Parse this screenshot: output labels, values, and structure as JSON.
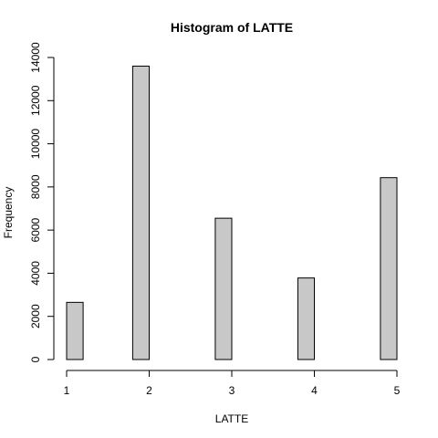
{
  "chart_data": {
    "type": "bar",
    "title": "Histogram of LATTE",
    "xlabel": "LATTE",
    "ylabel": "Frequency",
    "bin_edges": [
      1.0,
      1.2,
      1.4,
      1.6,
      1.8,
      2.0,
      2.2,
      2.4,
      2.6,
      2.8,
      3.0,
      3.2,
      3.4,
      3.6,
      3.8,
      4.0,
      4.2,
      4.4,
      4.6,
      4.8,
      5.0
    ],
    "values": [
      2650,
      0,
      0,
      0,
      13600,
      0,
      0,
      0,
      0,
      6550,
      0,
      0,
      0,
      0,
      3780,
      0,
      0,
      0,
      0,
      8430
    ],
    "bar_fill": "#c8c8c8",
    "bar_stroke": "#000000",
    "xlim": [
      1,
      5
    ],
    "ylim": [
      0,
      14000
    ],
    "x_ticks": [
      "1",
      "2",
      "3",
      "4",
      "5"
    ],
    "x_tick_values": [
      1,
      2,
      3,
      4,
      5
    ],
    "y_ticks": [
      "0",
      "2000",
      "4000",
      "6000",
      "8000",
      "10000",
      "12000",
      "14000"
    ],
    "y_tick_values": [
      0,
      2000,
      4000,
      6000,
      8000,
      10000,
      12000,
      14000
    ],
    "grid": false,
    "legend": "none"
  }
}
